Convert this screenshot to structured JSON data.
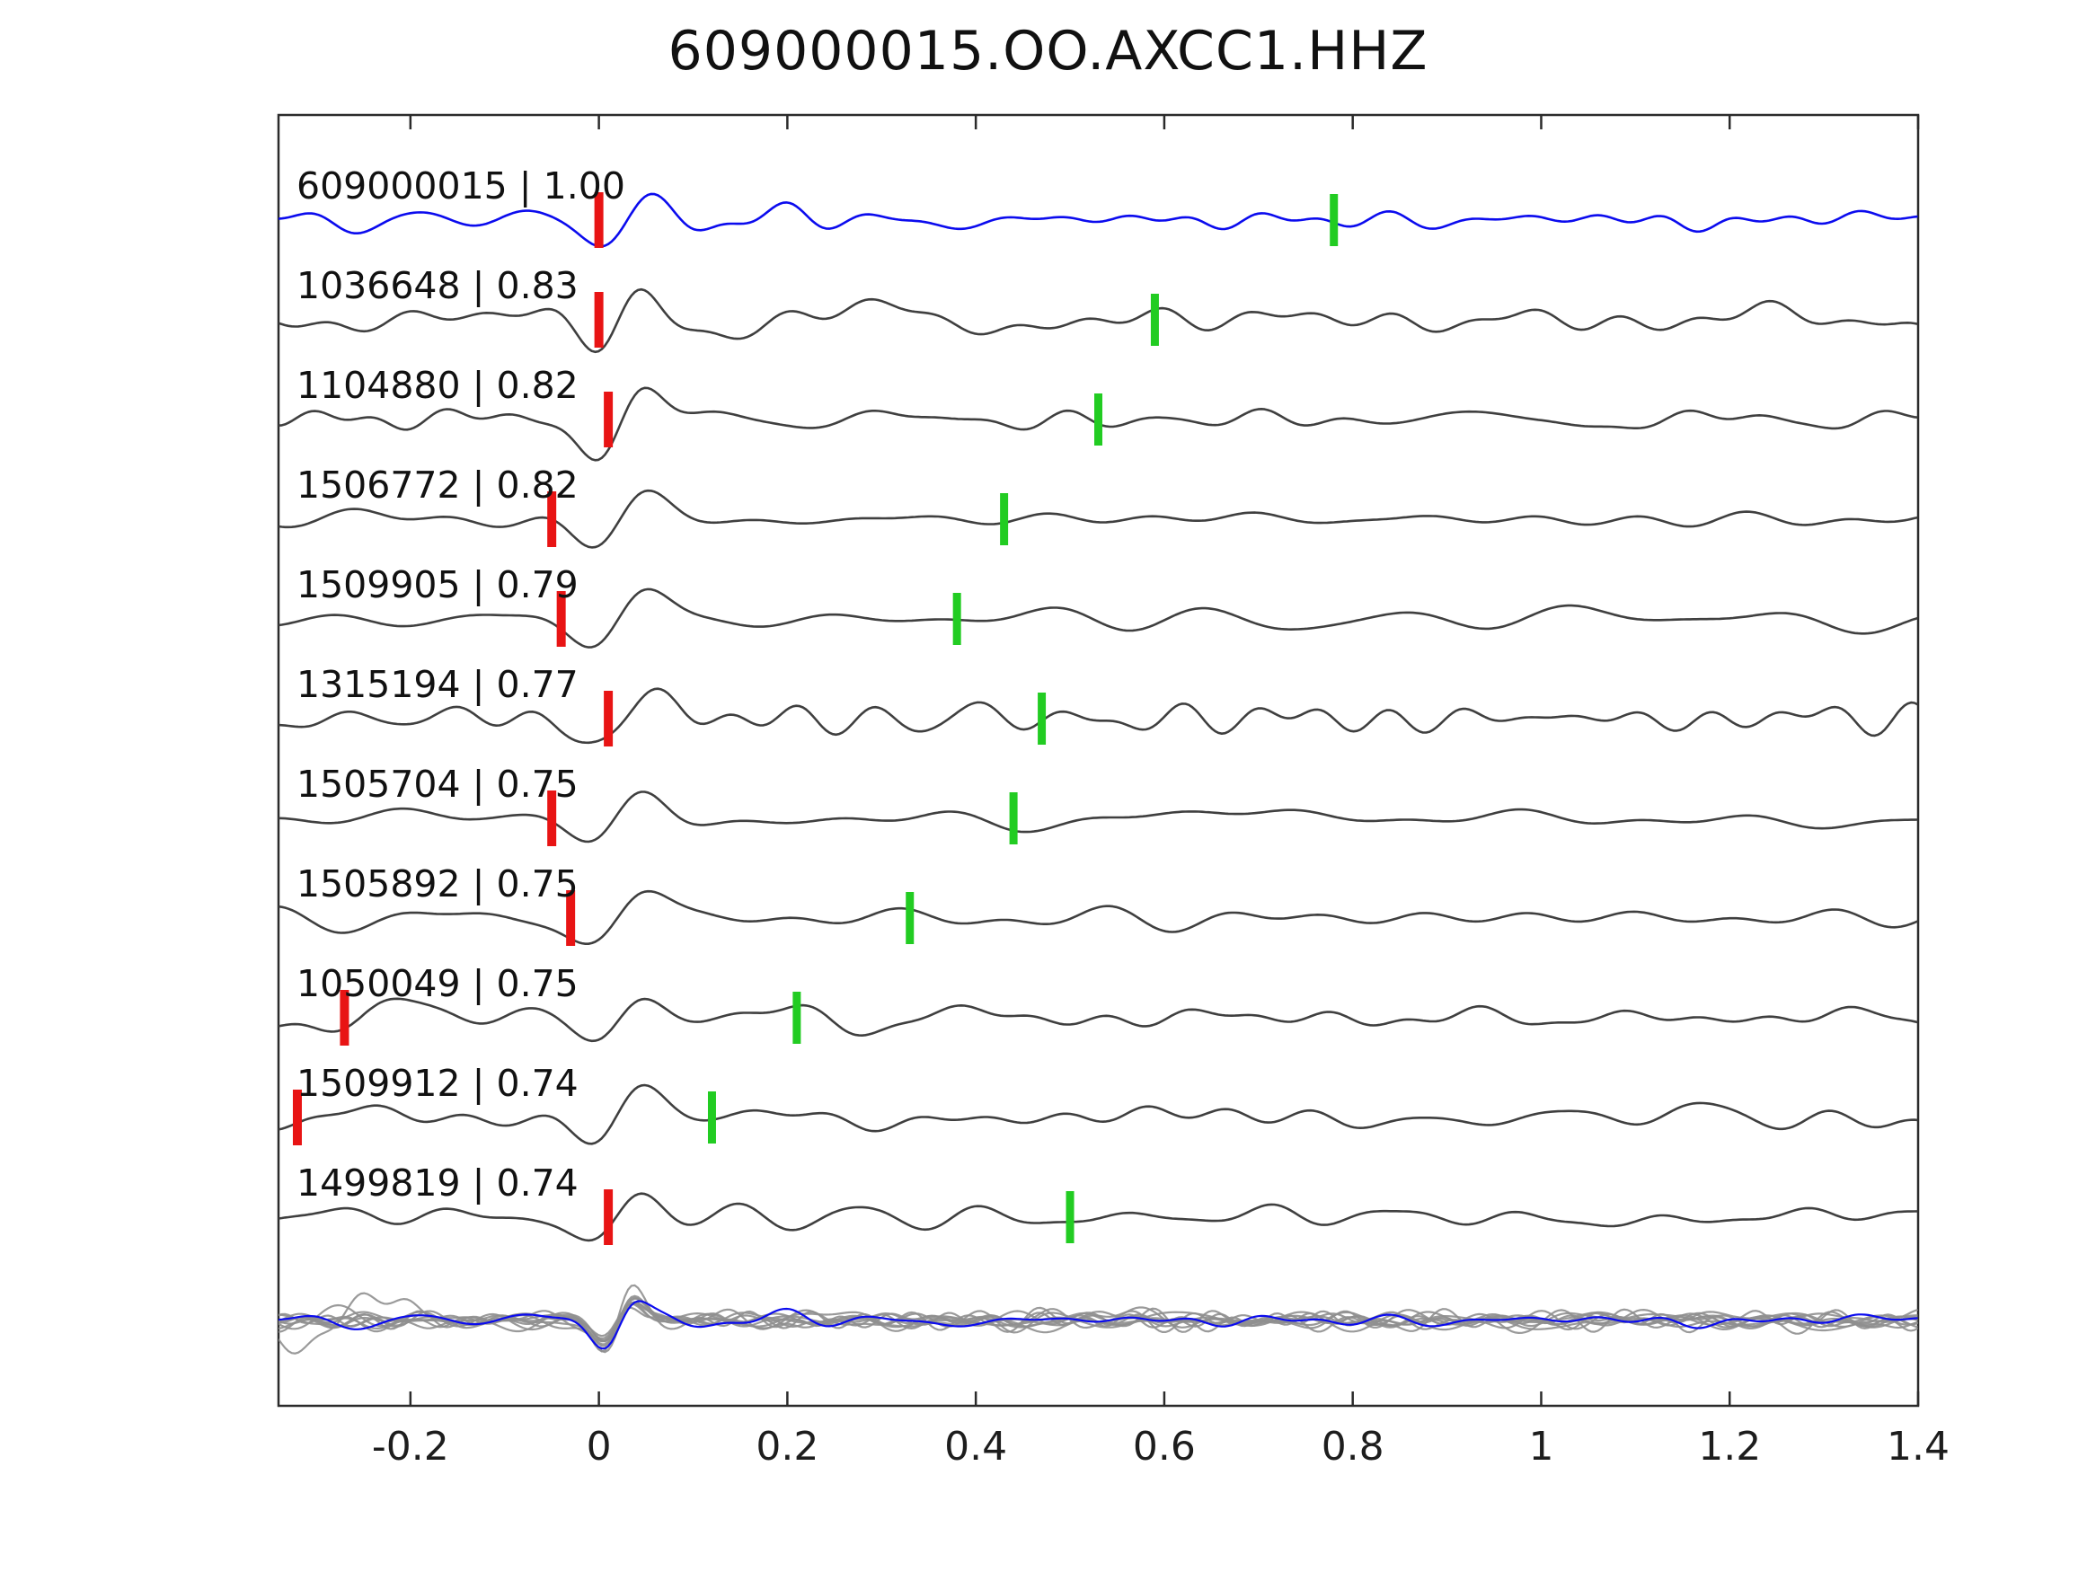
{
  "title": "609000015.OO.AXCC1.HHZ",
  "colors": {
    "reference_trace": "#0b0bee",
    "trace": "#3f3f3f",
    "overlay_trace": "#8f8f8f",
    "red_pick": "#e81414",
    "green_pick": "#22cc22",
    "axis": "#2b2b2b",
    "background": "#ffffff"
  },
  "chart_data": {
    "type": "line",
    "title": "609000015.OO.AXCC1.HHZ",
    "subtitle": "",
    "xlabel": "",
    "ylabel": "",
    "xlim": [
      -0.34,
      1.4
    ],
    "grid": false,
    "legend": false,
    "x_ticks": [
      -0.2,
      0,
      0.2,
      0.4,
      0.6,
      0.8,
      1,
      1.2,
      1.4
    ],
    "x_tick_labels": [
      "-0.2",
      "0",
      "0.2",
      "0.4",
      "0.6",
      "0.8",
      "1",
      "1.2",
      "1.4"
    ],
    "traces": [
      {
        "id": "609000015",
        "correlation": "1.00",
        "label": "609000015 | 1.00",
        "is_reference": true,
        "red_pick_x": 0.0,
        "green_pick_x": 0.78
      },
      {
        "id": "1036648",
        "correlation": "0.83",
        "label": "1036648 | 0.83",
        "is_reference": false,
        "red_pick_x": 0.0,
        "green_pick_x": 0.59
      },
      {
        "id": "1104880",
        "correlation": "0.82",
        "label": "1104880 | 0.82",
        "is_reference": false,
        "red_pick_x": 0.01,
        "green_pick_x": 0.53
      },
      {
        "id": "1506772",
        "correlation": "0.82",
        "label": "1506772 | 0.82",
        "is_reference": false,
        "red_pick_x": -0.05,
        "green_pick_x": 0.43
      },
      {
        "id": "1509905",
        "correlation": "0.79",
        "label": "1509905 | 0.79",
        "is_reference": false,
        "red_pick_x": -0.04,
        "green_pick_x": 0.38
      },
      {
        "id": "1315194",
        "correlation": "0.77",
        "label": "1315194 | 0.77",
        "is_reference": false,
        "red_pick_x": 0.01,
        "green_pick_x": 0.47
      },
      {
        "id": "1505704",
        "correlation": "0.75",
        "label": "1505704 | 0.75",
        "is_reference": false,
        "red_pick_x": -0.05,
        "green_pick_x": 0.44
      },
      {
        "id": "1505892",
        "correlation": "0.75",
        "label": "1505892 | 0.75",
        "is_reference": false,
        "red_pick_x": -0.03,
        "green_pick_x": 0.33
      },
      {
        "id": "1050049",
        "correlation": "0.75",
        "label": "1050049 | 0.75",
        "is_reference": false,
        "red_pick_x": -0.27,
        "green_pick_x": 0.21
      },
      {
        "id": "1509912",
        "correlation": "0.74",
        "label": "1509912 | 0.74",
        "is_reference": false,
        "red_pick_x": -0.32,
        "green_pick_x": 0.12
      },
      {
        "id": "1499819",
        "correlation": "0.74",
        "label": "1499819 | 0.74",
        "is_reference": false,
        "red_pick_x": 0.01,
        "green_pick_x": 0.5
      }
    ],
    "overlay_row": {
      "description": "All matched traces overplotted in gray with the reference trace in blue",
      "gray_trace_count": 10,
      "includes_blue_reference": true
    }
  }
}
